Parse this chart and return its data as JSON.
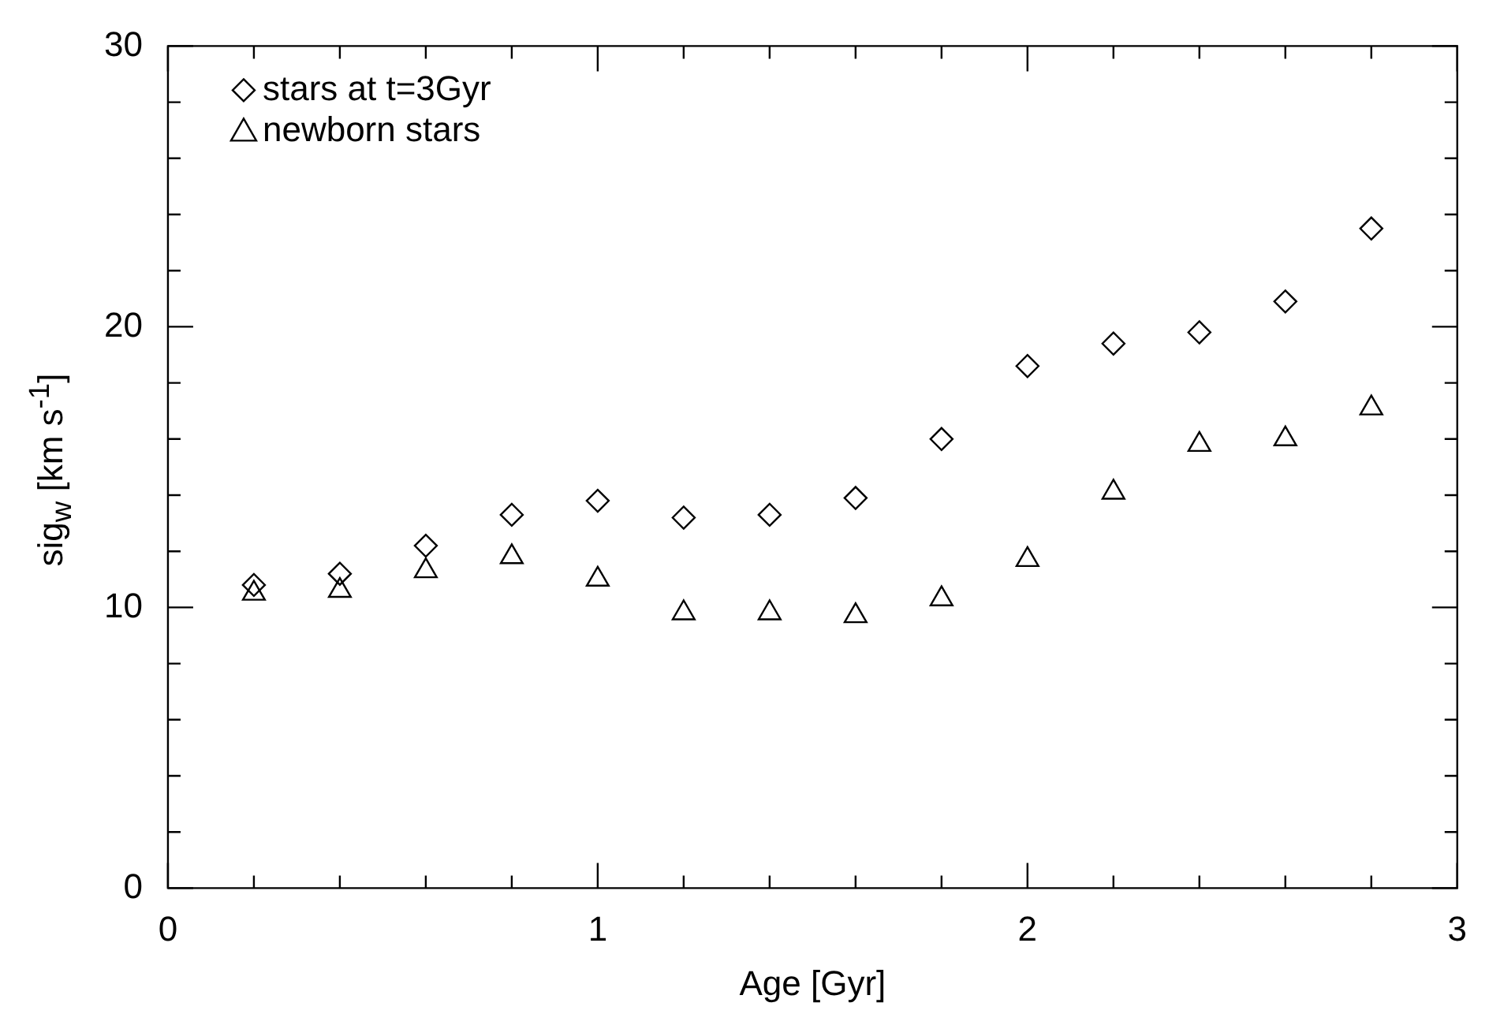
{
  "chart_data": {
    "type": "scatter",
    "xlabel": "Age [Gyr]",
    "ylabel": "sig$_{w}$ [km s$^{-1}$]",
    "x": [
      0.2,
      0.4,
      0.6,
      0.8,
      1.0,
      1.2,
      1.4,
      1.6,
      1.8,
      2.0,
      2.2,
      2.4,
      2.6,
      2.8
    ],
    "series": [
      {
        "name": "stars at t=3Gyr",
        "color": "#000000",
        "marker": "diamond",
        "values": [
          10.8,
          11.2,
          12.2,
          13.3,
          13.8,
          13.2,
          13.3,
          13.9,
          16.0,
          18.6,
          19.4,
          19.8,
          20.9,
          23.5
        ]
      },
      {
        "name": "newborn stars",
        "color": "#000000",
        "marker": "triangle",
        "values": [
          10.5,
          10.6,
          11.3,
          11.8,
          11.0,
          9.8,
          9.8,
          9.7,
          10.3,
          11.7,
          14.1,
          15.8,
          16.0,
          17.1
        ]
      }
    ],
    "xlim": [
      0,
      3
    ],
    "xticks": [
      0,
      {
        "value": 0.2,
        "label": null
      },
      {
        "value": 0.4,
        "label": null
      },
      {
        "value": 0.6,
        "label": null
      },
      {
        "value": 0.8,
        "label": null
      },
      1,
      {
        "value": 1.2,
        "label": null
      },
      {
        "value": 1.4,
        "label": null
      },
      {
        "value": 1.6,
        "label": null
      },
      {
        "value": 1.8,
        "label": null
      },
      2,
      {
        "value": 2.2,
        "label": null
      },
      {
        "value": 2.4,
        "label": null
      },
      {
        "value": 2.6,
        "label": null
      },
      {
        "value": 2.8,
        "label": null
      },
      3
    ],
    "ylim": [
      0,
      30
    ],
    "yticks": [
      0,
      {
        "value": 2,
        "label": null
      },
      {
        "value": 4,
        "label": null
      },
      {
        "value": 6,
        "label": null
      },
      {
        "value": 8,
        "label": null
      },
      10,
      {
        "value": 12,
        "label": null
      },
      {
        "value": 14,
        "label": null
      },
      {
        "value": 16,
        "label": null
      },
      {
        "value": 18,
        "label": null
      },
      20,
      {
        "value": 22,
        "label": null
      },
      {
        "value": 24,
        "label": null
      },
      {
        "value": 26,
        "label": null
      },
      {
        "value": 28,
        "label": null
      },
      30
    ],
    "grid": false,
    "legend": "top left"
  }
}
